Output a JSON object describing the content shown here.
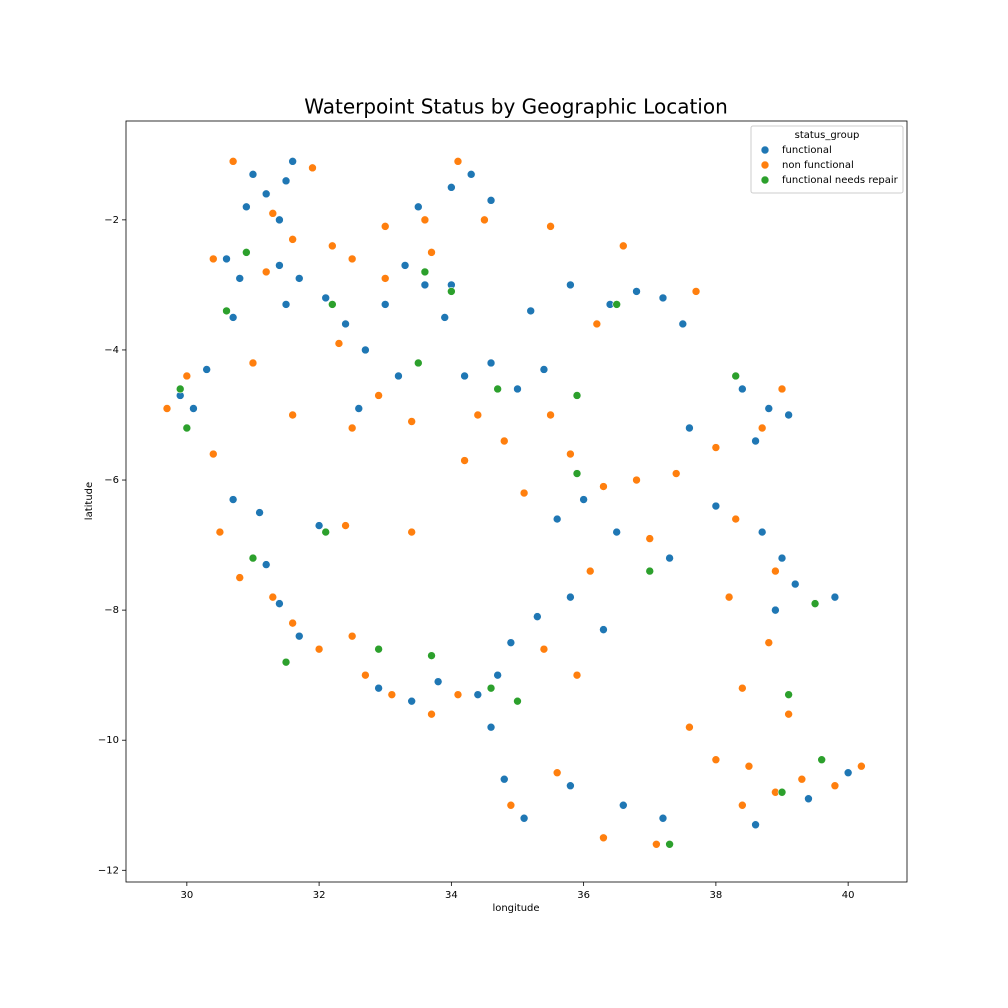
{
  "chart_data": {
    "type": "scatter",
    "title": "Waterpoint Status by Geographic Location",
    "x_label": "longitude",
    "y_label": "latitude",
    "legend_title": "status_group",
    "legend_position": "upper right",
    "xlim": [
      29.08,
      40.89
    ],
    "ylim": [
      -12.18,
      -0.48
    ],
    "xticks": [
      30,
      32,
      34,
      36,
      38,
      40
    ],
    "yticks": [
      {
        "value": -12,
        "label": "−12"
      },
      {
        "value": -10,
        "label": "−10"
      },
      {
        "value": -8,
        "label": "−8"
      },
      {
        "value": -6,
        "label": "−6"
      },
      {
        "value": -4,
        "label": "−4"
      },
      {
        "value": -2,
        "label": "−2"
      }
    ],
    "series": [
      {
        "name": "functional",
        "color": "#1f77b4",
        "x": [
          31.0,
          31.2,
          31.5,
          31.6,
          30.9,
          31.4,
          30.6,
          30.8,
          31.4,
          31.7,
          30.7,
          30.3,
          29.9,
          30.1,
          31.5,
          32.1,
          32.4,
          32.7,
          33.0,
          33.3,
          33.6,
          33.9,
          33.2,
          32.6,
          33.5,
          34.0,
          34.3,
          34.6,
          34.0,
          34.2,
          34.6,
          35.0,
          35.4,
          35.2,
          35.8,
          36.4,
          36.8,
          37.2,
          37.5,
          38.4,
          38.8,
          39.1,
          38.6,
          36.0,
          35.6,
          36.5,
          37.3,
          38.0,
          38.7,
          39.0,
          39.2,
          38.9,
          31.2,
          31.4,
          31.7,
          30.7,
          31.1,
          32.0,
          32.9,
          33.4,
          33.8,
          34.4,
          34.7,
          34.9,
          35.3,
          35.8,
          34.6,
          34.8,
          35.1,
          35.8,
          36.6,
          37.2,
          38.6,
          39.4,
          40.0,
          39.8,
          37.6,
          36.3
        ],
        "values": [
          -1.3,
          -1.6,
          -1.4,
          -1.1,
          -1.8,
          -2.0,
          -2.6,
          -2.9,
          -2.7,
          -2.9,
          -3.5,
          -4.3,
          -4.7,
          -4.9,
          -3.3,
          -3.2,
          -3.6,
          -4.0,
          -3.3,
          -2.7,
          -3.0,
          -3.5,
          -4.4,
          -4.9,
          -1.8,
          -1.5,
          -1.3,
          -1.7,
          -3.0,
          -4.4,
          -4.2,
          -4.6,
          -4.3,
          -3.4,
          -3.0,
          -3.3,
          -3.1,
          -3.2,
          -3.6,
          -4.6,
          -4.9,
          -5.0,
          -5.4,
          -6.3,
          -6.6,
          -6.8,
          -7.2,
          -6.4,
          -6.8,
          -7.2,
          -7.6,
          -8.0,
          -7.3,
          -7.9,
          -8.4,
          -6.3,
          -6.5,
          -6.7,
          -9.2,
          -9.4,
          -9.1,
          -9.3,
          -9.0,
          -8.5,
          -8.1,
          -7.8,
          -9.8,
          -10.6,
          -11.2,
          -10.7,
          -11.0,
          -11.2,
          -11.3,
          -10.9,
          -10.5,
          -7.8,
          -5.2,
          -8.3
        ]
      },
      {
        "name": "non functional",
        "color": "#ff7f0e",
        "x": [
          30.7,
          31.9,
          31.3,
          31.6,
          30.4,
          31.2,
          29.7,
          30.0,
          30.4,
          30.5,
          30.8,
          31.3,
          31.6,
          32.0,
          32.5,
          32.7,
          33.1,
          33.7,
          32.2,
          32.5,
          33.0,
          33.7,
          32.3,
          32.9,
          33.4,
          32.5,
          31.6,
          33.0,
          33.6,
          34.1,
          34.5,
          34.4,
          34.8,
          35.5,
          34.2,
          35.1,
          35.8,
          36.3,
          36.8,
          37.4,
          38.0,
          38.3,
          37.0,
          36.1,
          35.4,
          35.9,
          37.7,
          36.6,
          35.5,
          36.2,
          38.7,
          39.0,
          38.2,
          38.9,
          38.8,
          38.4,
          39.1,
          37.6,
          38.0,
          38.5,
          38.9,
          39.3,
          39.8,
          40.2,
          38.4,
          36.3,
          37.1,
          34.9,
          35.6,
          34.1,
          33.4,
          32.4,
          31.0
        ],
        "values": [
          -1.1,
          -1.2,
          -1.9,
          -2.3,
          -2.6,
          -2.8,
          -4.9,
          -4.4,
          -5.6,
          -6.8,
          -7.5,
          -7.8,
          -8.2,
          -8.6,
          -8.4,
          -9.0,
          -9.3,
          -9.6,
          -2.4,
          -2.6,
          -2.9,
          -2.5,
          -3.9,
          -4.7,
          -5.1,
          -5.2,
          -5.0,
          -2.1,
          -2.0,
          -1.1,
          -2.0,
          -5.0,
          -5.4,
          -5.0,
          -5.7,
          -6.2,
          -5.6,
          -6.1,
          -6.0,
          -5.9,
          -5.5,
          -6.6,
          -6.9,
          -7.4,
          -8.6,
          -9.0,
          -3.1,
          -2.4,
          -2.1,
          -3.6,
          -5.2,
          -4.6,
          -7.8,
          -7.4,
          -8.5,
          -9.2,
          -9.6,
          -9.8,
          -10.3,
          -10.4,
          -10.8,
          -10.6,
          -10.7,
          -10.4,
          -11.0,
          -11.5,
          -11.6,
          -11.0,
          -10.5,
          -9.3,
          -6.8,
          -6.7,
          -4.2
        ]
      },
      {
        "name": "functional needs repair",
        "color": "#2ca02c",
        "x": [
          30.9,
          30.6,
          29.9,
          30.0,
          31.5,
          32.9,
          33.7,
          34.6,
          32.2,
          33.6,
          34.0,
          33.5,
          34.7,
          35.9,
          36.5,
          35.9,
          37.0,
          38.3,
          39.1,
          39.0,
          39.6,
          37.3,
          32.1,
          31.0,
          39.5,
          35.0
        ],
        "values": [
          -2.5,
          -3.4,
          -4.6,
          -5.2,
          -8.8,
          -8.6,
          -8.7,
          -9.2,
          -3.3,
          -2.8,
          -3.1,
          -4.2,
          -4.6,
          -4.7,
          -3.3,
          -5.9,
          -7.4,
          -4.4,
          -9.3,
          -10.8,
          -10.3,
          -11.6,
          -6.8,
          -7.2,
          -7.9,
          -9.4
        ]
      }
    ]
  }
}
